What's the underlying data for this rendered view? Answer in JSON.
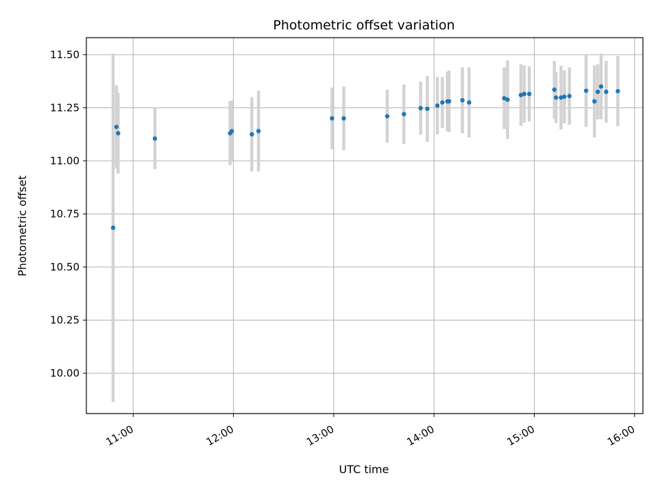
{
  "chart_data": {
    "type": "scatter",
    "title": "Photometric offset variation",
    "xlabel": "UTC time",
    "ylabel": "Photometric offset",
    "x_ticks": [
      "11:00",
      "12:00",
      "13:00",
      "14:00",
      "15:00",
      "16:00"
    ],
    "y_ticks": [
      "10.00",
      "10.25",
      "10.50",
      "10.75",
      "11.00",
      "11.25",
      "11.50"
    ],
    "xlim": [
      "10:32",
      "16:05"
    ],
    "ylim": [
      9.81,
      11.58
    ],
    "grid": true,
    "colors": {
      "point": "#1f77b4",
      "errorbar": "#d3d3d3",
      "grid": "#b0b0b0"
    },
    "points": [
      {
        "t": "10:48",
        "y": 10.685,
        "err": 0.82
      },
      {
        "t": "10:50",
        "y": 11.16,
        "err": 0.195
      },
      {
        "t": "10:51",
        "y": 11.13,
        "err": 0.19
      },
      {
        "t": "11:13",
        "y": 11.105,
        "err": 0.145
      },
      {
        "t": "11:58",
        "y": 11.13,
        "err": 0.15
      },
      {
        "t": "11:59",
        "y": 11.14,
        "err": 0.145
      },
      {
        "t": "12:11",
        "y": 11.125,
        "err": 0.175
      },
      {
        "t": "12:15",
        "y": 11.14,
        "err": 0.19
      },
      {
        "t": "12:59",
        "y": 11.2,
        "err": 0.145
      },
      {
        "t": "13:06",
        "y": 11.2,
        "err": 0.15
      },
      {
        "t": "13:32",
        "y": 11.21,
        "err": 0.125
      },
      {
        "t": "13:42",
        "y": 11.22,
        "err": 0.14
      },
      {
        "t": "13:52",
        "y": 11.248,
        "err": 0.125
      },
      {
        "t": "13:56",
        "y": 11.245,
        "err": 0.155
      },
      {
        "t": "14:02",
        "y": 11.26,
        "err": 0.135
      },
      {
        "t": "14:05",
        "y": 11.275,
        "err": 0.12
      },
      {
        "t": "14:08",
        "y": 11.28,
        "err": 0.14
      },
      {
        "t": "14:09",
        "y": 11.28,
        "err": 0.145
      },
      {
        "t": "14:17",
        "y": 11.285,
        "err": 0.155
      },
      {
        "t": "14:21",
        "y": 11.275,
        "err": 0.165
      },
      {
        "t": "14:42",
        "y": 11.295,
        "err": 0.145
      },
      {
        "t": "14:44",
        "y": 11.288,
        "err": 0.185
      },
      {
        "t": "14:52",
        "y": 11.31,
        "err": 0.145
      },
      {
        "t": "14:54",
        "y": 11.315,
        "err": 0.135
      },
      {
        "t": "14:57",
        "y": 11.315,
        "err": 0.13
      },
      {
        "t": "15:12",
        "y": 11.335,
        "err": 0.135
      },
      {
        "t": "15:13",
        "y": 11.298,
        "err": 0.12
      },
      {
        "t": "15:16",
        "y": 11.298,
        "err": 0.15
      },
      {
        "t": "15:18",
        "y": 11.302,
        "err": 0.125
      },
      {
        "t": "15:21",
        "y": 11.305,
        "err": 0.135
      },
      {
        "t": "15:31",
        "y": 11.33,
        "err": 0.17
      },
      {
        "t": "15:36",
        "y": 11.28,
        "err": 0.17
      },
      {
        "t": "15:38",
        "y": 11.325,
        "err": 0.13
      },
      {
        "t": "15:40",
        "y": 11.35,
        "err": 0.155
      },
      {
        "t": "15:43",
        "y": 11.325,
        "err": 0.145
      },
      {
        "t": "15:50",
        "y": 11.328,
        "err": 0.165
      }
    ]
  }
}
